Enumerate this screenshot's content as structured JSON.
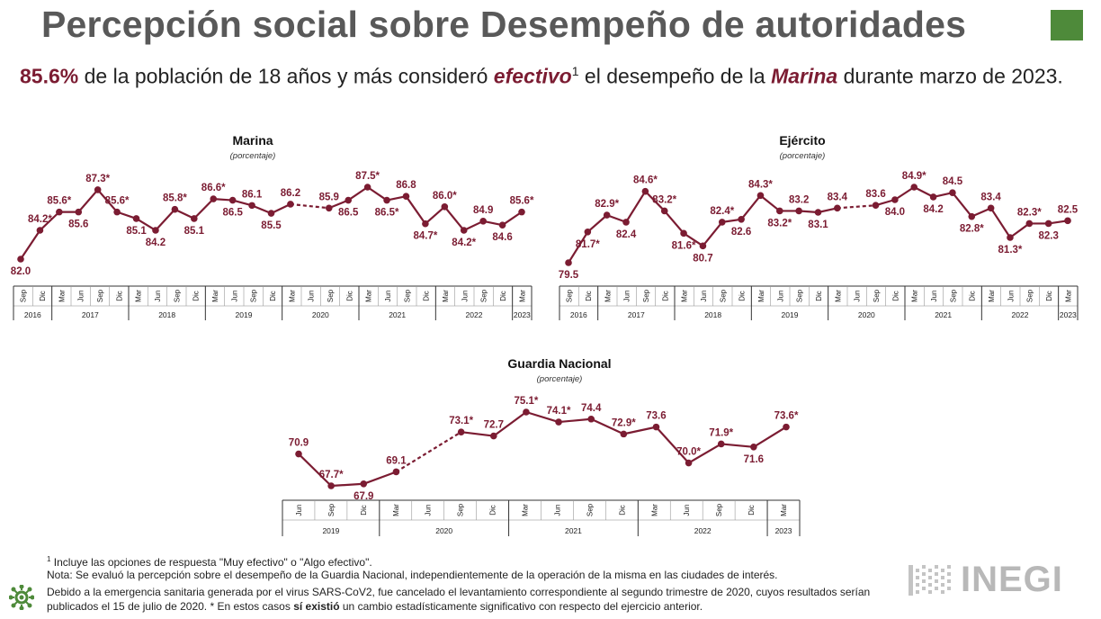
{
  "header": {
    "title": "Percepción social sobre Desempeño de autoridades",
    "highlight_pct": "85.6%",
    "text_a": " de la población de 18 años y más consideró ",
    "text_em1": "efectivo",
    "text_sup": "1",
    "text_b": " el desempeño de la ",
    "text_em2": "Marina",
    "text_c": " durante marzo de 2023."
  },
  "colors": {
    "accent": "#7b1c32",
    "green": "#4e8a3a",
    "axis": "#333333",
    "logo_gray": "#b8b8b8"
  },
  "chart_data": [
    {
      "type": "line",
      "title": "Marina",
      "subtitle": "(porcentaje)",
      "ylabel": "porcentaje",
      "ylim": [
        80,
        90
      ],
      "x": [
        "Sep",
        "Dic",
        "Mar",
        "Jun",
        "Sep",
        "Dic",
        "Mar",
        "Jun",
        "Sep",
        "Dic",
        "Mar",
        "Jun",
        "Sep",
        "Dic",
        "Mar",
        "Jun",
        "Sep",
        "Dic",
        "Mar",
        "Jun",
        "Sep",
        "Dic",
        "Mar",
        "Jun",
        "Sep",
        "Dic",
        "Mar"
      ],
      "years": [
        {
          "label": "2016",
          "span": 2
        },
        {
          "label": "2017",
          "span": 4
        },
        {
          "label": "2018",
          "span": 4
        },
        {
          "label": "2019",
          "span": 4
        },
        {
          "label": "2020",
          "span": 4
        },
        {
          "label": "2021",
          "span": 4
        },
        {
          "label": "2022",
          "span": 4
        },
        {
          "label": "2023",
          "span": 1
        }
      ],
      "values": [
        82.0,
        84.2,
        85.6,
        85.6,
        87.3,
        85.6,
        85.1,
        84.2,
        85.8,
        85.1,
        86.6,
        86.5,
        86.1,
        85.5,
        86.2,
        null,
        85.9,
        86.5,
        87.5,
        86.5,
        86.8,
        84.7,
        86.0,
        84.2,
        84.9,
        84.6,
        85.6
      ],
      "labels": [
        "82.0",
        "84.2*",
        "85.6*",
        "85.6",
        "87.3*",
        "85.6*",
        "85.1",
        "84.2",
        "85.8*",
        "85.1",
        "86.6*",
        "86.5",
        "86.1",
        "85.5",
        "86.2",
        "",
        "85.9",
        "86.5",
        "87.5*",
        "86.5*",
        "86.8",
        "84.7*",
        "86.0*",
        "84.2*",
        "84.9",
        "84.6",
        "85.6*"
      ],
      "label_pos": [
        "below",
        "above",
        "above",
        "below",
        "above",
        "above",
        "below",
        "below",
        "above",
        "below",
        "above",
        "below",
        "above",
        "below",
        "above",
        "",
        "above",
        "below",
        "above",
        "below",
        "above",
        "below",
        "above",
        "below",
        "above",
        "below",
        "above"
      ],
      "dashed_gap": [
        14,
        16
      ]
    },
    {
      "type": "line",
      "title": "Ejército",
      "subtitle": "(porcentaje)",
      "ylabel": "porcentaje",
      "ylim": [
        78,
        88
      ],
      "x": [
        "Sep",
        "Dic",
        "Mar",
        "Jun",
        "Sep",
        "Dic",
        "Mar",
        "Jun",
        "Sep",
        "Dic",
        "Mar",
        "Jun",
        "Sep",
        "Dic",
        "Mar",
        "Jun",
        "Sep",
        "Dic",
        "Mar",
        "Jun",
        "Sep",
        "Dic",
        "Mar",
        "Jun",
        "Sep",
        "Dic",
        "Mar"
      ],
      "years": [
        {
          "label": "2016",
          "span": 2
        },
        {
          "label": "2017",
          "span": 4
        },
        {
          "label": "2018",
          "span": 4
        },
        {
          "label": "2019",
          "span": 4
        },
        {
          "label": "2020",
          "span": 4
        },
        {
          "label": "2021",
          "span": 4
        },
        {
          "label": "2022",
          "span": 4
        },
        {
          "label": "2023",
          "span": 1
        }
      ],
      "values": [
        79.5,
        81.7,
        82.9,
        82.4,
        84.6,
        83.2,
        81.6,
        80.7,
        82.4,
        82.6,
        84.3,
        83.2,
        83.2,
        83.1,
        83.4,
        null,
        83.6,
        84.0,
        84.9,
        84.2,
        84.5,
        82.8,
        83.4,
        81.3,
        82.3,
        82.3,
        82.5
      ],
      "labels": [
        "79.5",
        "81.7*",
        "82.9*",
        "82.4",
        "84.6*",
        "83.2*",
        "81.6*",
        "80.7",
        "82.4*",
        "82.6",
        "84.3*",
        "83.2*",
        "83.2",
        "83.1",
        "83.4",
        "",
        "83.6",
        "84.0",
        "84.9*",
        "84.2",
        "84.5",
        "82.8*",
        "83.4",
        "81.3*",
        "82.3*",
        "82.3",
        "82.5"
      ],
      "label_pos": [
        "below",
        "below",
        "above",
        "below",
        "above",
        "above",
        "below",
        "below",
        "above",
        "below",
        "above",
        "below",
        "above",
        "below",
        "above",
        "",
        "above",
        "below",
        "above",
        "below",
        "above",
        "below",
        "above",
        "below",
        "above",
        "below",
        "above"
      ],
      "dashed_gap": [
        14,
        16
      ]
    },
    {
      "type": "line",
      "title": "Guardia Nacional",
      "subtitle": "(porcentaje)",
      "ylabel": "porcentaje",
      "ylim": [
        64,
        80
      ],
      "x": [
        "Jun",
        "Sep",
        "Dic",
        "Mar",
        "Jun",
        "Sep",
        "Dic",
        "Mar",
        "Jun",
        "Sep",
        "Dic",
        "Mar",
        "Jun",
        "Sep",
        "Dic",
        "Mar"
      ],
      "years": [
        {
          "label": "2019",
          "span": 3
        },
        {
          "label": "2020",
          "span": 4
        },
        {
          "label": "2021",
          "span": 4
        },
        {
          "label": "2022",
          "span": 4
        },
        {
          "label": "2023",
          "span": 1
        }
      ],
      "values": [
        70.9,
        67.7,
        67.9,
        69.1,
        null,
        73.1,
        72.7,
        75.1,
        74.1,
        74.4,
        72.9,
        73.6,
        70.0,
        71.9,
        71.6,
        73.6
      ],
      "labels": [
        "70.9",
        "67.7*",
        "67.9",
        "69.1",
        "",
        "73.1*",
        "72.7",
        "75.1*",
        "74.1*",
        "74.4",
        "72.9*",
        "73.6",
        "70.0*",
        "71.9*",
        "71.6",
        "73.6*"
      ],
      "label_pos": [
        "above",
        "above",
        "below",
        "above",
        "",
        "above",
        "above",
        "above",
        "above",
        "above",
        "above",
        "above",
        "above",
        "above",
        "below",
        "above"
      ],
      "dashed_gap": [
        3,
        5
      ]
    }
  ],
  "footnotes": {
    "note1_sup": "1",
    "note1": " Incluye las opciones de respuesta \"Muy efectivo\" o \"Algo efectivo\".",
    "note2": "Nota: Se evaluó la percepción sobre el desempeño de la Guardia Nacional, independientemente de la operación de la misma en las ciudades de interés.",
    "note3_a": "Debido a la emergencia sanitaria generada por el virus SARS-CoV2, fue cancelado el levantamiento correspondiente al segundo trimestre de 2020, cuyos resultados serían publicados el 15 de julio de 2020. * En estos casos ",
    "note3_bold": "sí existió",
    "note3_b": " un cambio estadísticamente significativo con respecto del ejercicio anterior."
  },
  "logo": {
    "text": "INEGI",
    "icon": "inegi-dots-logo"
  },
  "icons": {
    "virus": "virus-icon"
  }
}
